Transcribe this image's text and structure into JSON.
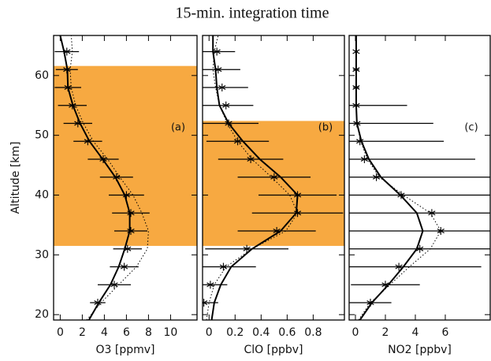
{
  "title": "15-min. integration time",
  "chart_data": [
    {
      "type": "profile",
      "panel_label": "(a)",
      "xlabel": "O3 [ppmv]",
      "ylabel": "Altitude [km]",
      "xlim": [
        -0.6,
        12.4
      ],
      "xticks": [
        0,
        2,
        4,
        6,
        8,
        10
      ],
      "ylim": [
        19.1,
        66.7
      ],
      "yticks": [
        20,
        30,
        40,
        50,
        60
      ],
      "highlight_range": [
        31.5,
        61.6
      ],
      "highlight_color": "#f7a941",
      "color": "#000000",
      "points": {
        "y": [
          22,
          25,
          28,
          31,
          34,
          37,
          40,
          43,
          46,
          49,
          52,
          55,
          58,
          61,
          64
        ],
        "values": [
          3.4,
          4.9,
          5.8,
          6.1,
          6.4,
          6.4,
          6.0,
          5.1,
          3.9,
          2.5,
          1.6,
          1.1,
          0.7,
          0.6,
          0.6
        ],
        "errors": [
          0.7,
          1.5,
          1.3,
          1.3,
          1.5,
          1.7,
          1.6,
          1.5,
          1.4,
          1.3,
          1.3,
          1.3,
          1.2,
          1.0,
          1.1
        ]
      },
      "lines": [
        {
          "style": "solid",
          "y": [
            19.1,
            22,
            25,
            28,
            31,
            34,
            37,
            40,
            43,
            46,
            49,
            52,
            55,
            58,
            61,
            64,
            66.7
          ],
          "values": [
            2.6,
            3.5,
            4.55,
            5.3,
            5.85,
            6.3,
            6.3,
            5.85,
            5.0,
            3.85,
            2.65,
            1.8,
            1.15,
            0.7,
            0.65,
            0.35,
            0.0
          ]
        },
        {
          "style": "dotted",
          "y": [
            19.1,
            22,
            25,
            28,
            31,
            34,
            37,
            40,
            43,
            46,
            49,
            52,
            55,
            58,
            61,
            64,
            66.7
          ],
          "values": [
            2.4,
            3.7,
            5.3,
            6.9,
            7.9,
            8.0,
            7.4,
            6.6,
            5.4,
            4.3,
            3.0,
            2.1,
            1.4,
            1.0,
            0.9,
            1.1,
            1.0
          ]
        }
      ]
    },
    {
      "type": "profile",
      "panel_label": "(b)",
      "xlabel": "ClO [ppbv]",
      "xlim": [
        -0.05,
        1.04
      ],
      "xticks": [
        0,
        0.2,
        0.4,
        0.6,
        0.8
      ],
      "ylim": [
        19.1,
        66.7
      ],
      "yticks": [
        20,
        30,
        40,
        50,
        60
      ],
      "highlight_range": [
        31.5,
        52.4
      ],
      "highlight_color": "#f7a941",
      "color": "#000000",
      "points": {
        "y": [
          22,
          25,
          28,
          31,
          34,
          37,
          40,
          43,
          46,
          49,
          52,
          55,
          58,
          61,
          64
        ],
        "values": [
          -0.04,
          0.01,
          0.11,
          0.29,
          0.52,
          0.68,
          0.68,
          0.5,
          0.32,
          0.22,
          0.15,
          0.13,
          0.1,
          0.07,
          0.06
        ],
        "errors": [
          0.11,
          0.13,
          0.25,
          0.32,
          0.3,
          0.35,
          0.3,
          0.28,
          0.25,
          0.24,
          0.23,
          0.21,
          0.2,
          0.17,
          0.14
        ]
      },
      "lines": [
        {
          "style": "solid",
          "y": [
            19.1,
            22,
            25,
            28,
            31,
            34,
            37,
            40,
            43,
            46,
            49,
            52,
            55,
            58,
            61,
            64,
            66.7
          ],
          "values": [
            0.02,
            0.04,
            0.09,
            0.17,
            0.33,
            0.55,
            0.67,
            0.68,
            0.55,
            0.39,
            0.26,
            0.15,
            0.08,
            0.06,
            0.05,
            0.03,
            0.03
          ]
        },
        {
          "style": "dotted",
          "y": [
            19.1,
            22,
            25,
            28,
            31,
            34,
            37,
            40,
            43,
            46,
            49,
            52,
            55,
            58,
            61,
            64,
            66.7
          ],
          "values": [
            -0.02,
            0.0,
            0.04,
            0.13,
            0.33,
            0.59,
            0.68,
            0.62,
            0.48,
            0.33,
            0.22,
            0.14,
            0.08,
            0.05,
            0.03,
            0.04,
            0.07
          ]
        }
      ]
    },
    {
      "type": "profile",
      "panel_label": "(c)",
      "xlabel": "NO2 [ppbv]",
      "xlim": [
        -0.42,
        9.0
      ],
      "xticks": [
        0,
        2,
        4,
        6
      ],
      "ylim": [
        19.1,
        66.7
      ],
      "yticks": [
        20,
        30,
        40,
        50,
        60
      ],
      "color": "#000000",
      "points": {
        "y": [
          22,
          25,
          28,
          31,
          34,
          37,
          40,
          43,
          46,
          49,
          52,
          55,
          58,
          61,
          64
        ],
        "values": [
          1.0,
          2.0,
          2.9,
          4.3,
          5.7,
          5.1,
          3.05,
          1.4,
          0.6,
          0.3,
          0.1,
          0.05,
          0.05,
          0.05,
          0.05
        ],
        "errors": [
          1.4,
          2.3,
          5.5,
          6.0,
          8.0,
          8.0,
          8.0,
          8.0,
          7.4,
          5.6,
          5.1,
          3.4,
          0.2,
          0.2,
          0.1
        ]
      },
      "lines": [
        {
          "style": "solid",
          "y": [
            19.1,
            22,
            25,
            28,
            31,
            34,
            37,
            40,
            43,
            46,
            49,
            52,
            55,
            58,
            61,
            64,
            66.7
          ],
          "values": [
            0.3,
            1.1,
            2.2,
            3.2,
            4.1,
            4.5,
            4.1,
            3.0,
            1.7,
            0.9,
            0.4,
            0.1,
            0.05,
            0.05,
            0.05,
            0.05,
            0.05
          ]
        },
        {
          "style": "dotted",
          "y": [
            19.1,
            22,
            25,
            28,
            31,
            34,
            37,
            40,
            43,
            46,
            49,
            52,
            55,
            58,
            61,
            64,
            66.7
          ],
          "values": [
            0.2,
            1.0,
            2.3,
            3.6,
            5.0,
            5.7,
            5.0,
            3.2,
            1.6,
            0.8,
            0.35,
            0.1,
            0.05,
            0.05,
            0.05,
            0.05,
            0.05
          ]
        }
      ]
    }
  ]
}
